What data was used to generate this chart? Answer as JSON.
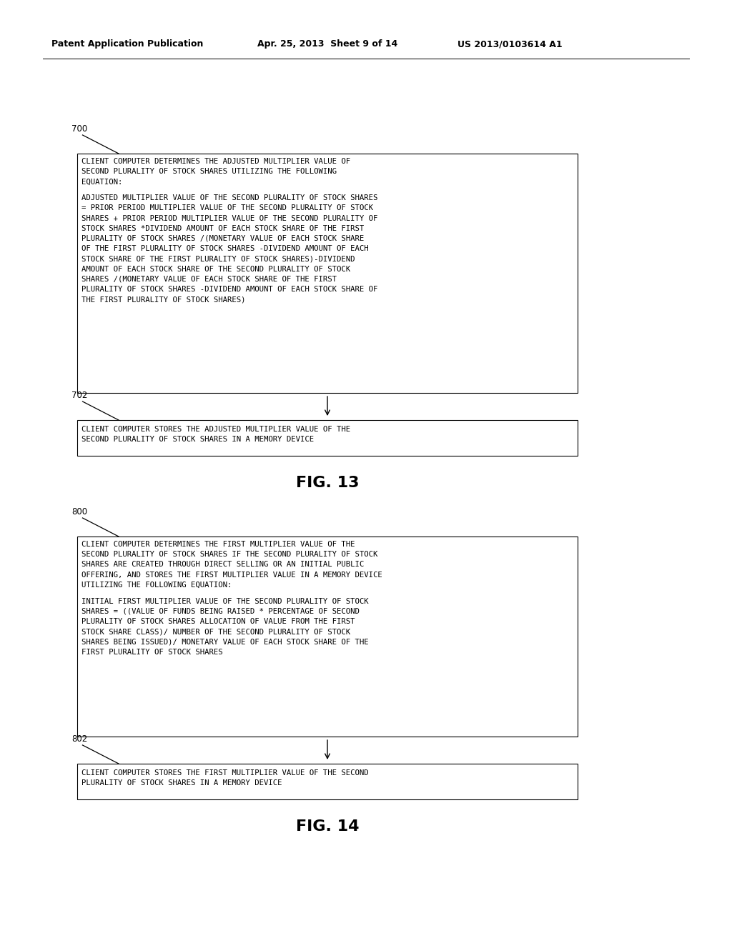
{
  "bg_color": "#ffffff",
  "header_left": "Patent Application Publication",
  "header_center": "Apr. 25, 2013  Sheet 9 of 14",
  "header_right": "US 2013/0103614 A1",
  "fig13": {
    "label": "FIG. 13",
    "box700_label": "700",
    "box700_lines": [
      "CLIENT COMPUTER DETERMINES THE ADJUSTED MULTIPLIER VALUE OF",
      "SECOND PLURALITY OF STOCK SHARES UTILIZING THE FOLLOWING",
      "EQUATION:",
      "",
      "ADJUSTED MULTIPLIER VALUE OF THE SECOND PLURALITY OF STOCK SHARES",
      "= PRIOR PERIOD MULTIPLIER VALUE OF THE SECOND PLURALITY OF STOCK",
      "SHARES + PRIOR PERIOD MULTIPLIER VALUE OF THE SECOND PLURALITY OF",
      "STOCK SHARES *DIVIDEND AMOUNT OF EACH STOCK SHARE OF THE FIRST",
      "PLURALITY OF STOCK SHARES /(MONETARY VALUE OF EACH STOCK SHARE",
      "OF THE FIRST PLURALITY OF STOCK SHARES -DIVIDEND AMOUNT OF EACH",
      "STOCK SHARE OF THE FIRST PLURALITY OF STOCK SHARES)-DIVIDEND",
      "AMOUNT OF EACH STOCK SHARE OF THE SECOND PLURALITY OF STOCK",
      "SHARES /(MONETARY VALUE OF EACH STOCK SHARE OF THE FIRST",
      "PLURALITY OF STOCK SHARES -DIVIDEND AMOUNT OF EACH STOCK SHARE OF",
      "THE FIRST PLURALITY OF STOCK SHARES)"
    ],
    "box702_label": "702",
    "box702_lines": [
      "CLIENT COMPUTER STORES THE ADJUSTED MULTIPLIER VALUE OF THE",
      "SECOND PLURALITY OF STOCK SHARES IN A MEMORY DEVICE"
    ]
  },
  "fig14": {
    "label": "FIG. 14",
    "box800_label": "800",
    "box800_lines": [
      "CLIENT COMPUTER DETERMINES THE FIRST MULTIPLIER VALUE OF THE",
      "SECOND PLURALITY OF STOCK SHARES IF THE SECOND PLURALITY OF STOCK",
      "SHARES ARE CREATED THROUGH DIRECT SELLING OR AN INITIAL PUBLIC",
      "OFFERING, AND STORES THE FIRST MULTIPLIER VALUE IN A MEMORY DEVICE",
      "UTILIZING THE FOLLOWING EQUATION:",
      "",
      "INITIAL FIRST MULTIPLIER VALUE OF THE SECOND PLURALITY OF STOCK",
      "SHARES = ((VALUE OF FUNDS BEING RAISED * PERCENTAGE OF SECOND",
      "PLURALITY OF STOCK SHARES ALLOCATION OF VALUE FROM THE FIRST",
      "STOCK SHARE CLASS)/ NUMBER OF THE SECOND PLURALITY OF STOCK",
      "SHARES BEING ISSUED)/ MONETARY VALUE OF EACH STOCK SHARE OF THE",
      "FIRST PLURALITY OF STOCK SHARES"
    ],
    "box802_label": "802",
    "box802_lines": [
      "CLIENT COMPUTER STORES THE FIRST MULTIPLIER VALUE OF THE SECOND",
      "PLURALITY OF STOCK SHARES IN A MEMORY DEVICE"
    ]
  }
}
